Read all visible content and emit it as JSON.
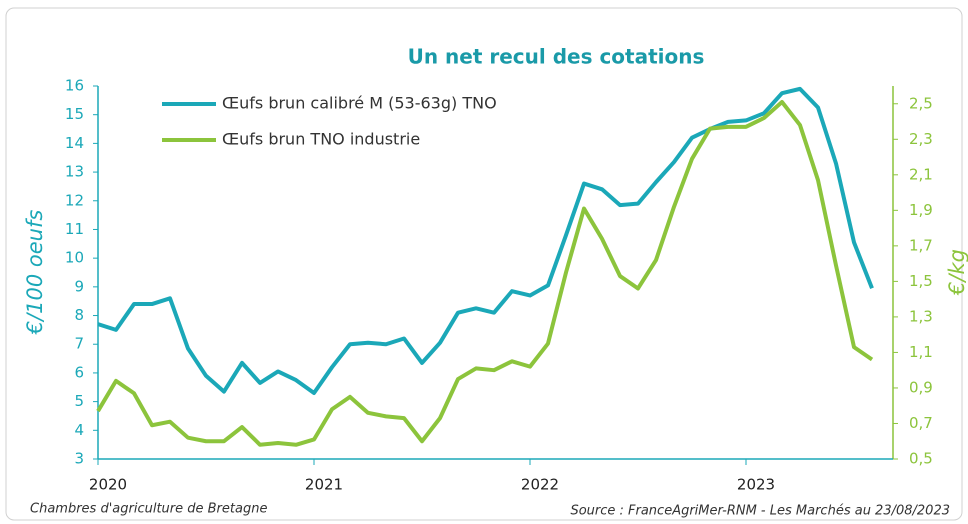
{
  "chart_data": {
    "type": "line",
    "title": "Un net recul des cotations",
    "ylabel": "€/100 oeufs",
    "y2label": "€/kg",
    "source_left": "Chambres d'agriculture de Bretagne",
    "source_right": "Source : FranceAgriMer-RNM - Les Marchés au 23/08/2023",
    "legend": "upper left",
    "categories": [
      "2020",
      null,
      null,
      null,
      null,
      null,
      null,
      null,
      null,
      null,
      null,
      null,
      "2021",
      null,
      null,
      null,
      null,
      null,
      null,
      null,
      null,
      null,
      null,
      null,
      "2022",
      null,
      null,
      null,
      null,
      null,
      null,
      null,
      null,
      null,
      null,
      null,
      "2023",
      null,
      null,
      null,
      null,
      null,
      null,
      null
    ],
    "series": [
      {
        "name": "Œufs brun calibré M (53-63g) TNO",
        "color": "#1ba8b8",
        "axis": "y",
        "values": [
          7.7,
          7.5,
          8.4,
          8.4,
          8.6,
          6.85,
          5.9,
          5.35,
          6.35,
          5.65,
          6.05,
          5.75,
          5.3,
          6.2,
          7.0,
          7.05,
          7.0,
          7.2,
          6.35,
          7.05,
          8.1,
          8.25,
          8.1,
          8.85,
          8.7,
          9.05,
          10.8,
          12.6,
          12.4,
          11.85,
          11.9,
          12.65,
          13.35,
          14.2,
          14.5,
          14.75,
          14.8,
          15.05,
          15.75,
          15.9,
          15.25,
          13.3,
          10.55,
          8.95
        ]
      },
      {
        "name": "Œufs brun TNO industrie",
        "color": "#8cc43c",
        "axis": "y2",
        "values": [
          0.77,
          0.94,
          0.87,
          0.69,
          0.71,
          0.62,
          0.6,
          0.6,
          0.68,
          0.58,
          0.59,
          0.58,
          0.61,
          0.78,
          0.85,
          0.76,
          0.74,
          0.73,
          0.6,
          0.73,
          0.95,
          1.01,
          1.0,
          1.05,
          1.02,
          1.15,
          1.55,
          1.91,
          1.74,
          1.53,
          1.46,
          1.62,
          1.92,
          2.19,
          2.36,
          2.37,
          2.37,
          2.42,
          2.51,
          2.38,
          2.07,
          1.59,
          1.13,
          1.06
        ]
      }
    ],
    "ylim": [
      3,
      16
    ],
    "yticks": [
      3,
      4,
      5,
      6,
      7,
      8,
      9,
      10,
      11,
      12,
      13,
      14,
      15,
      16
    ],
    "y2lim": [
      0.5,
      2.6
    ],
    "y2ticks": [
      {
        "value": 0.5,
        "label": "0,5"
      },
      {
        "value": 0.7,
        "label": "0,7"
      },
      {
        "value": 0.9,
        "label": "0,9"
      },
      {
        "value": 1.1,
        "label": "1,1"
      },
      {
        "value": 1.3,
        "label": "1,3"
      },
      {
        "value": 1.5,
        "label": "1,5"
      },
      {
        "value": 1.7,
        "label": "1,7"
      },
      {
        "value": 1.9,
        "label": "1,9"
      },
      {
        "value": 2.1,
        "label": "2,1"
      },
      {
        "value": 2.3,
        "label": "2,3"
      },
      {
        "value": 2.5,
        "label": "2,5"
      }
    ],
    "title_color": "#1a9aa8",
    "ylabel_color": "#1ba8b8",
    "y2label_color": "#8cc43c"
  }
}
